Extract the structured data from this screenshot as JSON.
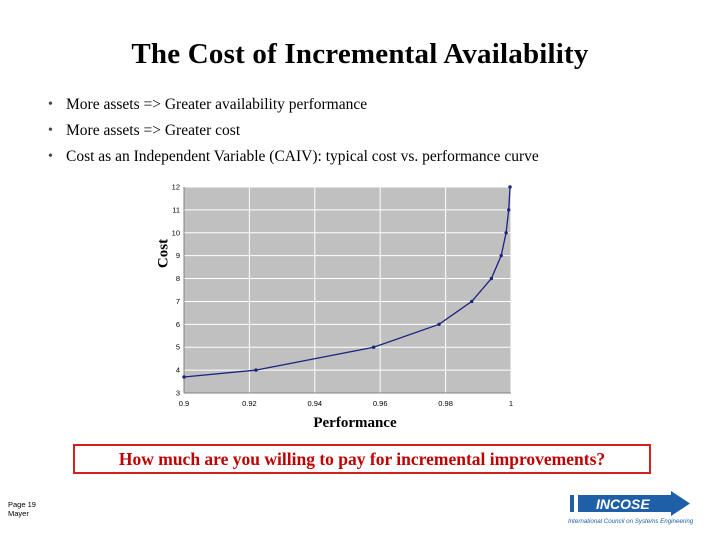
{
  "slide": {
    "title": "The Cost of Incremental Availability",
    "bullets": [
      "More assets => Greater availability performance",
      "More assets => Greater cost",
      "Cost as an Independent Variable (CAIV): typical cost vs. performance curve"
    ],
    "question": "How much are you willing to pay for incremental improvements?",
    "page_label": "Page 19",
    "author": "Mayer",
    "logo_text": "INCOSE",
    "logo_subtext": "International Council on Systems Engineering"
  },
  "colors": {
    "plot_background": "#c0c0c0",
    "line": "#1a237e",
    "question_border": "#d21f1f",
    "question_text": "#c00000",
    "logo_blue": "#1f5fa8"
  },
  "chart_data": {
    "type": "line",
    "title": "",
    "xlabel": "Performance",
    "ylabel": "Cost",
    "xlim": [
      0.9,
      1.0
    ],
    "ylim": [
      3,
      12
    ],
    "x_ticks": [
      "0.9",
      "0.92",
      "0.94",
      "0.96",
      "0.98",
      "1"
    ],
    "y_ticks": [
      "3",
      "4",
      "5",
      "6",
      "7",
      "8",
      "9",
      "10",
      "11",
      "12"
    ],
    "grid": true,
    "legend": "none",
    "series": [
      {
        "x": [
          0.9,
          0.922,
          0.958,
          0.978,
          0.988,
          0.994,
          0.997,
          0.9985,
          0.9993,
          0.9997
        ],
        "y": [
          3.7,
          4.0,
          5.0,
          6.0,
          7.0,
          8.0,
          9.0,
          10.0,
          11.0,
          12.0
        ]
      }
    ]
  }
}
